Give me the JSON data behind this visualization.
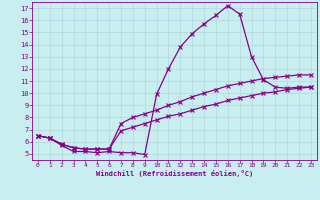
{
  "xlabel": "Windchill (Refroidissement éolien,°C)",
  "bg_color": "#c8eef0",
  "grid_color": "#b0d8dc",
  "line_color": "#880088",
  "xlim": [
    -0.5,
    23.5
  ],
  "ylim": [
    4.5,
    17.5
  ],
  "xticks": [
    0,
    1,
    2,
    3,
    4,
    5,
    6,
    7,
    8,
    9,
    10,
    11,
    12,
    13,
    14,
    15,
    16,
    17,
    18,
    19,
    20,
    21,
    22,
    23
  ],
  "yticks": [
    5,
    6,
    7,
    8,
    9,
    10,
    11,
    12,
    13,
    14,
    15,
    16,
    17
  ],
  "line1_x": [
    0,
    1,
    2,
    3,
    4,
    5,
    6,
    7,
    8,
    9,
    10,
    11,
    12,
    13,
    14,
    15,
    16,
    17,
    18,
    19,
    20,
    21,
    22,
    23
  ],
  "line1_y": [
    6.5,
    6.3,
    5.7,
    5.2,
    5.2,
    5.1,
    5.2,
    5.1,
    5.1,
    4.95,
    9.9,
    12.0,
    13.8,
    14.9,
    15.7,
    16.4,
    17.2,
    16.5,
    13.0,
    11.1,
    10.5,
    10.4,
    10.5,
    10.5
  ],
  "line2_x": [
    0,
    1,
    2,
    3,
    4,
    5,
    6,
    7,
    8,
    9,
    10,
    11,
    12,
    13,
    14,
    15,
    16,
    17,
    18,
    19,
    20,
    21,
    22,
    23
  ],
  "line2_y": [
    6.5,
    6.3,
    5.8,
    5.5,
    5.4,
    5.4,
    5.4,
    7.5,
    8.0,
    8.3,
    8.6,
    9.0,
    9.3,
    9.7,
    10.0,
    10.3,
    10.6,
    10.8,
    11.0,
    11.2,
    11.3,
    11.4,
    11.5,
    11.5
  ],
  "line3_x": [
    0,
    1,
    2,
    3,
    4,
    5,
    6,
    7,
    8,
    9,
    10,
    11,
    12,
    13,
    14,
    15,
    16,
    17,
    18,
    19,
    20,
    21,
    22,
    23
  ],
  "line3_y": [
    6.5,
    6.3,
    5.8,
    5.5,
    5.4,
    5.4,
    5.4,
    6.9,
    7.2,
    7.5,
    7.8,
    8.1,
    8.3,
    8.6,
    8.9,
    9.1,
    9.4,
    9.6,
    9.8,
    10.0,
    10.1,
    10.3,
    10.4,
    10.5
  ]
}
